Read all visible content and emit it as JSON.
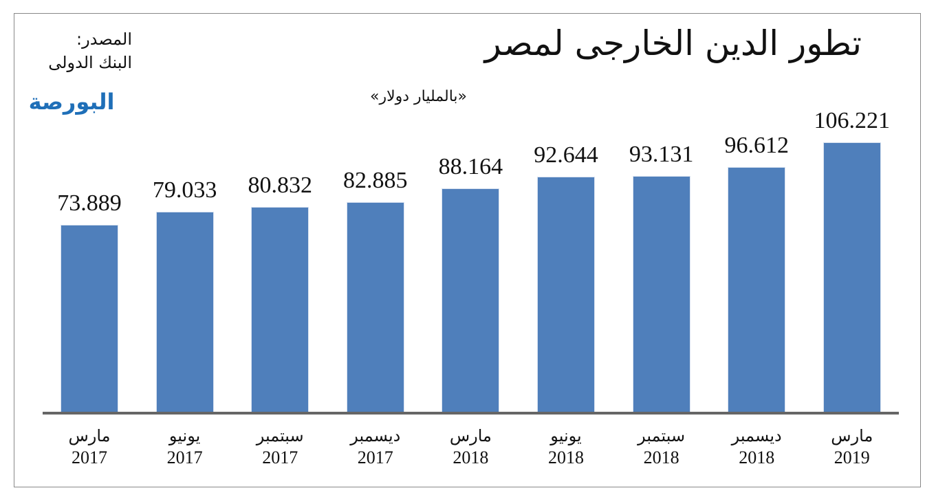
{
  "chart_data": {
    "type": "bar",
    "title": "تطور الدين الخارجى لمصر",
    "subtitle": "«بالمليار دولار»",
    "source": [
      "المصدر:",
      "البنك الدولى"
    ],
    "logo": "البورصة",
    "categories": [
      [
        "مارس",
        "2017"
      ],
      [
        "يونيو",
        "2017"
      ],
      [
        "سبتمبر",
        "2017"
      ],
      [
        "ديسمبر",
        "2017"
      ],
      [
        "مارس",
        "2018"
      ],
      [
        "يونيو",
        "2018"
      ],
      [
        "سبتمبر",
        "2018"
      ],
      [
        "ديسمبر",
        "2018"
      ],
      [
        "مارس",
        "2019"
      ]
    ],
    "values": [
      73.889,
      79.033,
      80.832,
      82.885,
      88.164,
      92.644,
      93.131,
      96.612,
      106.221
    ],
    "value_labels": [
      "73.889",
      "79.033",
      "80.832",
      "82.885",
      "88.164",
      "92.644",
      "93.131",
      "96.612",
      "106.221"
    ],
    "ylim": [
      0,
      119
    ],
    "grid": false,
    "bar_color": "#4f7fbb"
  }
}
